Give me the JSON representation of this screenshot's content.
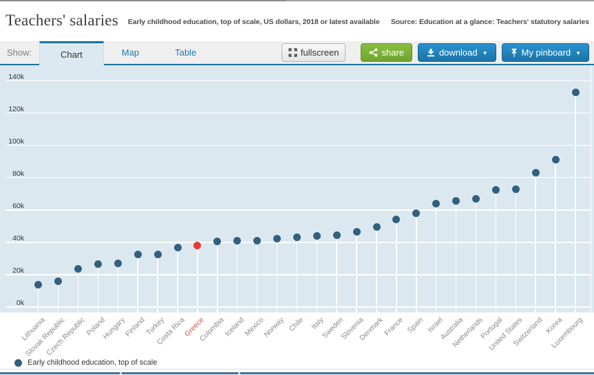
{
  "header": {
    "title": "Teachers' salaries",
    "subtitle": "Early childhood education, top of scale, US dollars, 2018 or latest available",
    "source": "Source: Education at a glance: Teachers' statutory salaries"
  },
  "tabs": {
    "show_label": "Show:",
    "items": [
      {
        "label": "Chart",
        "active": true
      },
      {
        "label": "Map",
        "active": false
      },
      {
        "label": "Table",
        "active": false
      }
    ]
  },
  "toolbar": {
    "fullscreen_label": "fullscreen",
    "share_label": "share",
    "download_label": "download",
    "pinboard_label": "My pinboard",
    "caret": "▼"
  },
  "legend": {
    "label": "Early childhood education, top of scale"
  },
  "colors": {
    "dot": "#34607f",
    "highlight": "#e23b3b",
    "plot_background": "#dce8f0",
    "grid": "#ffffff",
    "tab_link": "#1d7bac",
    "accent_border": "#1e729e",
    "button_green": "#7db53c",
    "button_blue": "#1f83c0",
    "xlabel_gray": "#8a8a8a",
    "xlabel_highlight": "#e24c4c"
  },
  "chart_data": {
    "type": "scatter",
    "title": "Teachers' salaries",
    "subtitle": "Early childhood education, top of scale, US dollars, 2018 or latest available",
    "unit": "US dollars",
    "legend_position": "bottom",
    "grid": true,
    "ylim": [
      0,
      150000
    ],
    "yticks": [
      0,
      20000,
      40000,
      60000,
      80000,
      100000,
      120000,
      140000
    ],
    "ytick_labels": [
      "0k",
      "20k",
      "40k",
      "60k",
      "80k",
      "100k",
      "120k",
      "140k"
    ],
    "categories": [
      "Lithuania",
      "Slovak Republic",
      "Czech Republic",
      "Poland",
      "Hungary",
      "Finland",
      "Turkey",
      "Costa Rica",
      "Greece",
      "Colombia",
      "Iceland",
      "Mexico",
      "Norway",
      "Chile",
      "Italy",
      "Sweden",
      "Slovenia",
      "Denmark",
      "France",
      "Spain",
      "Israel",
      "Australia",
      "Netherlands",
      "Portugal",
      "United States",
      "Switzerland",
      "Korea",
      "Luxembourg"
    ],
    "values": [
      14000,
      16100,
      23500,
      26600,
      26800,
      32300,
      32700,
      36700,
      38100,
      40400,
      40900,
      41200,
      42100,
      43300,
      44100,
      44500,
      46600,
      49400,
      54300,
      57800,
      63900,
      65700,
      67000,
      72400,
      72800,
      82900,
      91200,
      132700
    ],
    "series_name": "Early childhood education, top of scale",
    "series_color": "#34607f",
    "highlight_category": "Greece",
    "highlight_color": "#e23b3b"
  }
}
